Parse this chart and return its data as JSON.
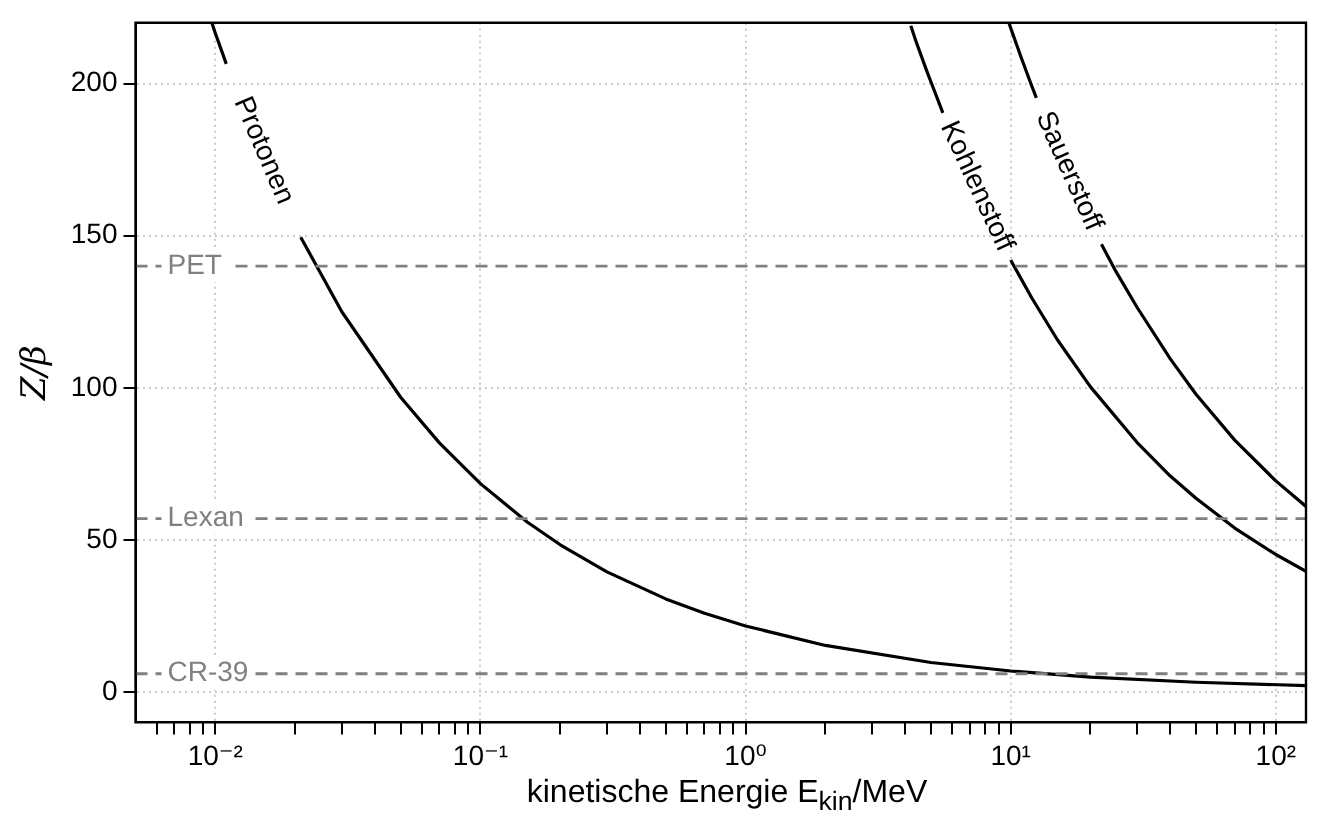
{
  "chart_data": {
    "type": "line",
    "xlabel": "kinetische Energie E$_{kin}$/MeV",
    "ylabel": "Z/β",
    "log": "x",
    "grid": true,
    "legend": false,
    "marker": "none",
    "line_style": "solid",
    "xlim": [
      0.005,
      130
    ],
    "ylim": [
      -10,
      220
    ],
    "xticks": [
      {
        "value": 0.006,
        "label": null
      },
      {
        "value": 0.007,
        "label": null
      },
      {
        "value": 0.008,
        "label": null
      },
      {
        "value": 0.009,
        "label": null
      },
      {
        "value": 0.01,
        "label": "10⁻²"
      },
      {
        "value": 0.02,
        "label": null
      },
      {
        "value": 0.03,
        "label": null
      },
      {
        "value": 0.04,
        "label": null
      },
      {
        "value": 0.05,
        "label": null
      },
      {
        "value": 0.06,
        "label": null
      },
      {
        "value": 0.07,
        "label": null
      },
      {
        "value": 0.08,
        "label": null
      },
      {
        "value": 0.09,
        "label": null
      },
      {
        "value": 0.1,
        "label": "10⁻¹"
      },
      {
        "value": 0.2,
        "label": null
      },
      {
        "value": 0.3,
        "label": null
      },
      {
        "value": 0.4,
        "label": null
      },
      {
        "value": 0.5,
        "label": null
      },
      {
        "value": 0.6,
        "label": null
      },
      {
        "value": 0.7,
        "label": null
      },
      {
        "value": 0.8,
        "label": null
      },
      {
        "value": 0.9,
        "label": null
      },
      {
        "value": 1,
        "label": "10⁰"
      },
      {
        "value": 2,
        "label": null
      },
      {
        "value": 3,
        "label": null
      },
      {
        "value": 4,
        "label": null
      },
      {
        "value": 5,
        "label": null
      },
      {
        "value": 6,
        "label": null
      },
      {
        "value": 7,
        "label": null
      },
      {
        "value": 8,
        "label": null
      },
      {
        "value": 9,
        "label": null
      },
      {
        "value": 10,
        "label": "10¹"
      },
      {
        "value": 20,
        "label": null
      },
      {
        "value": 30,
        "label": null
      },
      {
        "value": 40,
        "label": null
      },
      {
        "value": 50,
        "label": null
      },
      {
        "value": 60,
        "label": null
      },
      {
        "value": 70,
        "label": null
      },
      {
        "value": 80,
        "label": null
      },
      {
        "value": 90,
        "label": null
      },
      {
        "value": 100,
        "label": "10²"
      }
    ],
    "yticks": [
      0,
      50,
      100,
      150,
      200
    ],
    "series": [
      {
        "name": "Protonen",
        "color": "#000000",
        "x": [
          0.0097,
          0.01,
          0.011,
          0.015,
          0.02,
          0.021,
          0.03,
          0.05,
          0.07,
          0.1,
          0.15,
          0.2,
          0.3,
          0.5,
          0.7,
          1,
          2,
          5,
          10,
          20,
          50,
          130
        ],
        "values": [
          220,
          216.6,
          206.5,
          null,
          null,
          149.5,
          125,
          96.9,
          81.9,
          68.5,
          55.9,
          48.4,
          39.5,
          30.6,
          25.9,
          21.7,
          15.3,
          9.7,
          6.9,
          4.9,
          3.2,
          2.1
        ]
      },
      {
        "name": "Kohlenstoff",
        "color": "#000000",
        "x": [
          4.2,
          4.4,
          4.8,
          5,
          5.55,
          6,
          7,
          8,
          9.5,
          10,
          12,
          15,
          20,
          30,
          40,
          50,
          70,
          100,
          130
        ],
        "values": [
          219,
          213.8,
          204.7,
          200.6,
          190.4,
          null,
          null,
          null,
          null,
          142,
          129.6,
          115.8,
          100.3,
          82,
          71,
          63.7,
          53.9,
          45.2,
          39.7
        ]
      },
      {
        "name": "Sauerstoff",
        "color": "#000000",
        "x": [
          9.85,
          10,
          10.2,
          10.5,
          11,
          12,
          12.5,
          15,
          20,
          22,
          25,
          30,
          40,
          50,
          70,
          100,
          130
        ],
        "values": [
          220,
          218.3,
          216.2,
          213.1,
          208.2,
          199.3,
          195.3,
          null,
          null,
          147.2,
          138.1,
          126.4,
          109.5,
          97.9,
          82.8,
          69.4,
          61
        ]
      }
    ],
    "ref_lines": [
      {
        "axis": "y",
        "value": 140,
        "label": "PET",
        "color": "#808080",
        "line_style": "dashed"
      },
      {
        "axis": "y",
        "value": 57,
        "label": "Lexan",
        "color": "#808080",
        "line_style": "dashed"
      },
      {
        "axis": "y",
        "value": 6,
        "label": "CR-39",
        "color": "#808080",
        "line_style": "dashed"
      }
    ]
  }
}
